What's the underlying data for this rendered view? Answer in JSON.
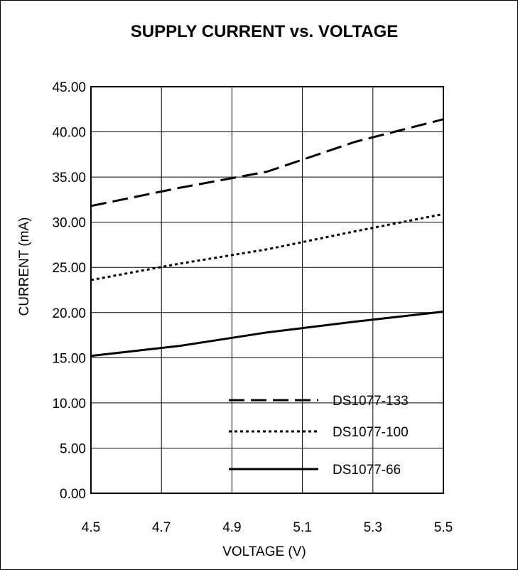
{
  "chart_data": {
    "type": "line",
    "title": "SUPPLY CURRENT vs. VOLTAGE",
    "xlabel": "VOLTAGE (V)",
    "ylabel": "CURRENT (mA)",
    "xlim": [
      4.5,
      5.5
    ],
    "ylim": [
      0,
      45
    ],
    "x_ticks": [
      "4.5",
      "4.7",
      "4.9",
      "5.1",
      "5.3",
      "5.5"
    ],
    "y_ticks": [
      "0.00",
      "5.00",
      "10.00",
      "15.00",
      "20.00",
      "25.00",
      "30.00",
      "35.00",
      "40.00",
      "45.00"
    ],
    "grid": true,
    "legend_position": "bottom-right",
    "series": [
      {
        "name": "DS1077-133",
        "style": "dashed",
        "x": [
          4.5,
          4.75,
          5.0,
          5.25,
          5.5
        ],
        "y": [
          31.8,
          33.8,
          35.6,
          38.9,
          41.4
        ]
      },
      {
        "name": "DS1077-100",
        "style": "dotted",
        "x": [
          4.5,
          4.75,
          5.0,
          5.25,
          5.5
        ],
        "y": [
          23.6,
          25.4,
          27.0,
          29.0,
          30.9
        ]
      },
      {
        "name": "DS1077-66",
        "style": "solid",
        "x": [
          4.5,
          4.75,
          5.0,
          5.25,
          5.5
        ],
        "y": [
          15.2,
          16.3,
          17.8,
          19.0,
          20.1
        ]
      }
    ]
  }
}
